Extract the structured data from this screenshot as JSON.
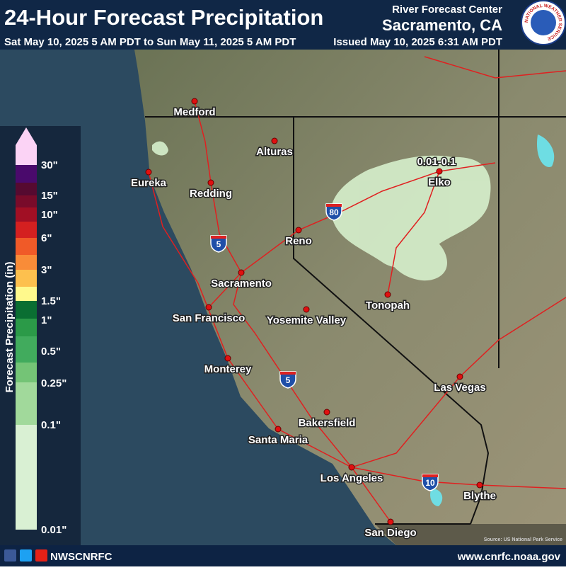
{
  "header": {
    "title": "24-Hour Forecast Precipitation",
    "valid_period": "Sat May 10, 2025 5 AM PDT to Sun May 11, 2025 5 AM PDT",
    "issued": "Issued May 10, 2025 6:31 AM PDT",
    "office_line1": "River Forecast Center",
    "office_line2": "Sacramento, CA",
    "logo_text": "NATIONAL WEATHER SERVICE"
  },
  "legend": {
    "axis_label": "Forecast Precipitation (in)",
    "labels": [
      "30\"",
      "15\"",
      "10\"",
      "6\"",
      "3\"",
      "1.5\"",
      "1\"",
      "0.5\"",
      "0.25\"",
      "0.1\"",
      "0.01\""
    ]
  },
  "map": {
    "cities": [
      "Medford",
      "Alturas",
      "Eureka",
      "Redding",
      "Reno",
      "Elko",
      "Sacramento",
      "San Francisco",
      "Yosemite Valley",
      "Tonopah",
      "Monterey",
      "Las Vegas",
      "Bakersfield",
      "Santa Maria",
      "Los Angeles",
      "Blythe",
      "San Diego"
    ],
    "highways": [
      "80",
      "5",
      "5",
      "10"
    ],
    "area_labels": [
      "0.01-0.1"
    ],
    "source": "Source: US National Park Service"
  },
  "footer": {
    "handle": "NWSCNRFC",
    "url": "www.cnrfc.noaa.gov"
  }
}
